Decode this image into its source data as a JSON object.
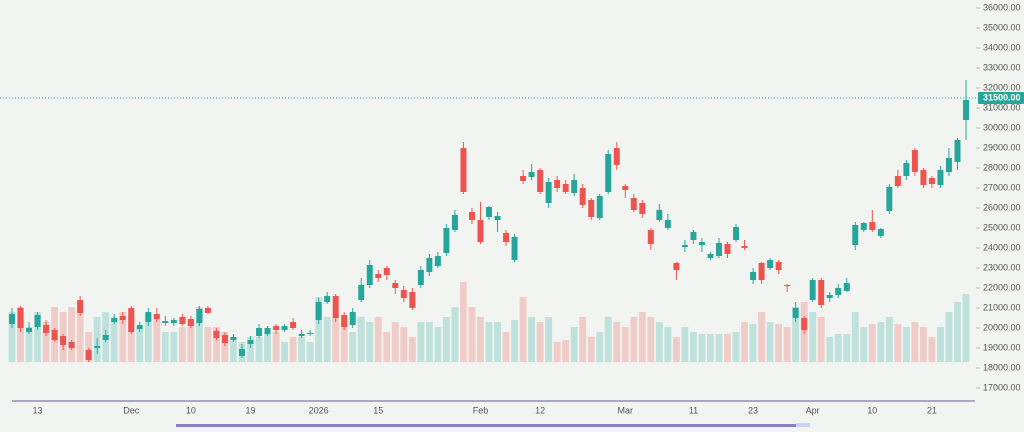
{
  "chart_data": {
    "type": "candlestick",
    "categories": [
      null,
      null,
      null,
      "13",
      null,
      null,
      null,
      null,
      null,
      null,
      null,
      null,
      null,
      null,
      "Dec",
      null,
      null,
      null,
      null,
      null,
      null,
      "10",
      null,
      null,
      null,
      null,
      null,
      null,
      "19",
      null,
      null,
      null,
      null,
      null,
      null,
      null,
      "2026",
      null,
      null,
      null,
      null,
      null,
      null,
      "15",
      null,
      null,
      null,
      null,
      null,
      null,
      null,
      null,
      null,
      null,
      null,
      "Feb",
      null,
      null,
      null,
      null,
      null,
      null,
      "12",
      null,
      null,
      null,
      null,
      null,
      null,
      null,
      null,
      null,
      "Mar",
      null,
      null,
      null,
      null,
      null,
      null,
      null,
      "11",
      null,
      null,
      null,
      null,
      null,
      null,
      "23",
      null,
      null,
      null,
      null,
      null,
      null,
      "Apr",
      null,
      null,
      null,
      null,
      null,
      null,
      "10",
      null,
      null,
      null,
      null,
      null,
      null,
      "21",
      null,
      null,
      null,
      null
    ],
    "open": [
      20200,
      21000,
      19800,
      20050,
      20150,
      19900,
      19600,
      19300,
      21400,
      18900,
      19000,
      19400,
      20300,
      20600,
      21000,
      19950,
      20300,
      20700,
      20250,
      20250,
      20550,
      20450,
      20250,
      21000,
      19850,
      19650,
      19400,
      18600,
      19200,
      19600,
      19700,
      20100,
      19900,
      20300,
      19600,
      19700,
      20400,
      21300,
      21600,
      20650,
      20150,
      21400,
      22150,
      22700,
      23000,
      22250,
      21900,
      21800,
      22150,
      22800,
      23100,
      23750,
      24900,
      29000,
      25800,
      25400,
      25550,
      25400,
      24750,
      23400,
      27600,
      27550,
      27900,
      26250,
      27400,
      27200,
      26750,
      27000,
      26400,
      25500,
      26800,
      29000,
      27100,
      26500,
      26250,
      24900,
      25400,
      25000,
      23250,
      24050,
      24400,
      24150,
      23500,
      23600,
      24200,
      24400,
      24100,
      22400,
      23250,
      23000,
      23300,
      22150,
      20500,
      20500,
      21400,
      22400,
      21500,
      21650,
      21850,
      24150,
      24900,
      25300,
      24600,
      25850,
      27600,
      27600,
      28900,
      27900,
      27500,
      27150,
      27800,
      28300,
      30400
    ],
    "high": [
      21000,
      21100,
      20300,
      20800,
      20400,
      20000,
      19700,
      19400,
      21600,
      19000,
      19500,
      19900,
      20700,
      20800,
      21100,
      20300,
      21000,
      21000,
      20600,
      20500,
      20700,
      20600,
      21100,
      21100,
      20000,
      19800,
      19700,
      19200,
      19600,
      20200,
      20100,
      20200,
      20200,
      20500,
      19900,
      19900,
      21500,
      21800,
      21700,
      20800,
      21000,
      22500,
      23400,
      22900,
      23100,
      22400,
      22100,
      22000,
      23100,
      23700,
      23800,
      25200,
      25900,
      29300,
      26000,
      26300,
      26100,
      25800,
      24900,
      24700,
      27900,
      28200,
      28000,
      27500,
      27600,
      27400,
      27700,
      27200,
      26500,
      26700,
      28900,
      29300,
      27200,
      26700,
      26400,
      25000,
      26200,
      25700,
      23300,
      24400,
      24900,
      24500,
      23800,
      24500,
      24300,
      25200,
      24400,
      23000,
      23300,
      23500,
      23400,
      22200,
      21300,
      20600,
      22500,
      22500,
      21800,
      22200,
      22500,
      25300,
      25300,
      25900,
      25000,
      27200,
      27900,
      28400,
      29000,
      28000,
      27600,
      28100,
      29000,
      29500,
      32400
    ],
    "low": [
      20000,
      19800,
      19700,
      19900,
      19600,
      19300,
      18900,
      18900,
      20600,
      18300,
      18700,
      19300,
      20200,
      20200,
      19700,
      19800,
      20100,
      20300,
      20100,
      20100,
      20100,
      20000,
      20100,
      20700,
      19400,
      19100,
      19300,
      18500,
      19000,
      19500,
      19600,
      19700,
      19800,
      19900,
      19500,
      19600,
      20200,
      21200,
      20300,
      19900,
      20000,
      21300,
      22000,
      22300,
      22400,
      21700,
      21300,
      20900,
      22000,
      22600,
      23000,
      23600,
      24800,
      26700,
      25200,
      24200,
      25400,
      24800,
      24100,
      23300,
      27200,
      27400,
      26700,
      26000,
      26800,
      26700,
      26600,
      26000,
      25400,
      25400,
      26700,
      27900,
      26500,
      25800,
      25500,
      23900,
      25300,
      24900,
      22400,
      23800,
      24200,
      23800,
      23400,
      23500,
      23500,
      24300,
      23900,
      22200,
      22200,
      22900,
      22700,
      21800,
      20300,
      19700,
      21300,
      21000,
      21300,
      21500,
      21800,
      23900,
      24800,
      24800,
      24500,
      25700,
      27000,
      27400,
      27600,
      27000,
      27000,
      27000,
      27600,
      27900,
      29400
    ],
    "close": [
      20700,
      20000,
      20000,
      20650,
      19750,
      19400,
      19150,
      19000,
      20750,
      18400,
      19100,
      19650,
      20500,
      20400,
      19800,
      20150,
      20800,
      20450,
      20350,
      20400,
      20200,
      20100,
      20950,
      20750,
      19500,
      19250,
      19550,
      18950,
      19400,
      20000,
      20000,
      19900,
      20100,
      20000,
      19700,
      19750,
      21300,
      21600,
      20500,
      20050,
      20800,
      22150,
      23150,
      22500,
      22650,
      22000,
      21500,
      21000,
      22900,
      23500,
      23600,
      25000,
      25650,
      26800,
      25400,
      24300,
      26050,
      25600,
      24300,
      24550,
      27350,
      27800,
      26800,
      27300,
      27000,
      26800,
      27400,
      26150,
      25550,
      26600,
      28700,
      28150,
      26900,
      25900,
      25700,
      24200,
      25900,
      25400,
      22900,
      24150,
      24800,
      24300,
      23700,
      24250,
      23700,
      25050,
      24000,
      22800,
      22400,
      23400,
      22900,
      22100,
      21000,
      19900,
      22400,
      21150,
      21650,
      22000,
      22250,
      25150,
      25250,
      24900,
      24950,
      27050,
      27100,
      28250,
      27800,
      27150,
      27200,
      27900,
      28500,
      29400,
      31400
    ],
    "volume": [
      50,
      55,
      35,
      50,
      40,
      55,
      50,
      55,
      60,
      30,
      45,
      50,
      45,
      50,
      48,
      35,
      48,
      45,
      30,
      30,
      35,
      40,
      55,
      35,
      35,
      30,
      25,
      20,
      25,
      25,
      30,
      30,
      20,
      25,
      25,
      20,
      65,
      45,
      45,
      40,
      30,
      45,
      40,
      45,
      30,
      40,
      35,
      25,
      40,
      40,
      35,
      45,
      55,
      80,
      55,
      45,
      40,
      40,
      30,
      42,
      65,
      45,
      40,
      45,
      20,
      22,
      35,
      45,
      25,
      30,
      45,
      40,
      35,
      45,
      50,
      45,
      40,
      35,
      25,
      35,
      30,
      28,
      28,
      28,
      28,
      30,
      40,
      38,
      50,
      40,
      38,
      35,
      55,
      60,
      50,
      45,
      25,
      28,
      28,
      50,
      35,
      38,
      40,
      45,
      38,
      35,
      40,
      35,
      25,
      35,
      50,
      60,
      68
    ],
    "up_color": "#26a69a",
    "down_color": "#ef5350",
    "ylim": [
      16400,
      36400
    ],
    "yticks": [
      {
        "value": 17000,
        "label": "17000.00"
      },
      {
        "value": 18000,
        "label": "18000.00"
      },
      {
        "value": 19000,
        "label": "19000.00"
      },
      {
        "value": 20000,
        "label": "20000.00"
      },
      {
        "value": 21000,
        "label": "21000.00"
      },
      {
        "value": 22000,
        "label": "22000.00"
      },
      {
        "value": 23000,
        "label": "23000.00"
      },
      {
        "value": 24000,
        "label": "24000.00"
      },
      {
        "value": 25000,
        "label": "25000.00"
      },
      {
        "value": 26000,
        "label": "26000.00"
      },
      {
        "value": 27000,
        "label": "27000.00"
      },
      {
        "value": 28000,
        "label": "28000.00"
      },
      {
        "value": 29000,
        "label": "29000.00"
      },
      {
        "value": 30000,
        "label": "30000.00"
      },
      {
        "value": 31000,
        "label": "31000.00"
      },
      {
        "value": 32000,
        "label": "32000.00"
      },
      {
        "value": 33000,
        "label": "33000.00"
      },
      {
        "value": 34000,
        "label": "34000.00"
      },
      {
        "value": 35000,
        "label": "35000.00"
      },
      {
        "value": 36000,
        "label": "36000.00"
      }
    ],
    "price_line": {
      "value": 31500,
      "label": "31500.00"
    }
  }
}
